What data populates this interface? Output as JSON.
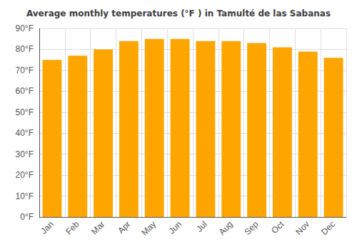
{
  "chart_data": {
    "type": "bar",
    "title": "Average monthly temperatures (°F ) in Tamulté de las Sabanas",
    "categories": [
      "Jan",
      "Feb",
      "Mar",
      "Apr",
      "May",
      "Jun",
      "Jul",
      "Aug",
      "Sep",
      "Oct",
      "Nov",
      "Dec"
    ],
    "values": [
      75,
      77,
      80,
      84,
      85,
      85,
      84,
      84,
      83,
      81,
      79,
      76
    ],
    "color": "#FFA500",
    "ylim": [
      0,
      90
    ],
    "yticks": [
      {
        "value": 0,
        "label": "0°F"
      },
      {
        "value": 10,
        "label": "10°F"
      },
      {
        "value": 20,
        "label": "20°F"
      },
      {
        "value": 30,
        "label": "30°F"
      },
      {
        "value": 40,
        "label": "40°F"
      },
      {
        "value": 50,
        "label": "50°F"
      },
      {
        "value": 60,
        "label": "60°F"
      },
      {
        "value": 70,
        "label": "70°F"
      },
      {
        "value": 80,
        "label": "80°F"
      },
      {
        "value": 90,
        "label": "90°F"
      }
    ],
    "grid": true
  }
}
